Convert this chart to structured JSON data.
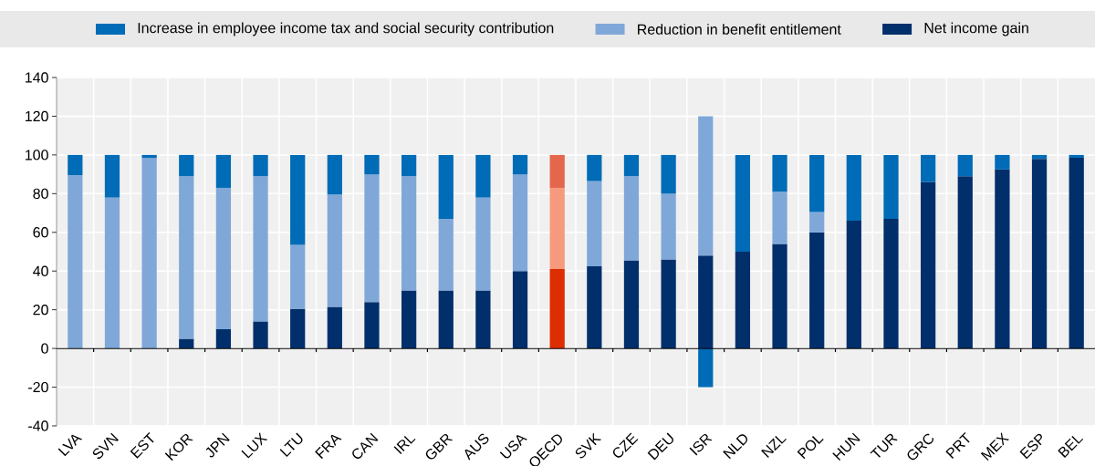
{
  "chart_data": {
    "type": "bar",
    "stacked": true,
    "categories": [
      "LVA",
      "SVN",
      "EST",
      "KOR",
      "JPN",
      "LUX",
      "LTU",
      "FRA",
      "CAN",
      "IRL",
      "GBR",
      "AUS",
      "USA",
      "OECD",
      "SVK",
      "CZE",
      "DEU",
      "ISR",
      "NLD",
      "NZL",
      "POL",
      "HUN",
      "TUR",
      "GRC",
      "PRT",
      "MEX",
      "ESP",
      "BEL"
    ],
    "series": [
      {
        "name": "Net income gain",
        "color": "#002f6c",
        "colors": [
          "#002f6c",
          "#002f6c",
          "#002f6c",
          "#002f6c",
          "#002f6c",
          "#002f6c",
          "#002f6c",
          "#002f6c",
          "#002f6c",
          "#002f6c",
          "#002f6c",
          "#002f6c",
          "#002f6c",
          "#dc2e00",
          "#002f6c",
          "#002f6c",
          "#002f6c",
          "#002f6c",
          "#002f6c",
          "#002f6c",
          "#002f6c",
          "#002f6c",
          "#002f6c",
          "#002f6c",
          "#002f6c",
          "#002f6c",
          "#002f6c",
          "#002f6c"
        ],
        "values": [
          0,
          0,
          0,
          5,
          10,
          14,
          20.5,
          21.5,
          24,
          30,
          30,
          30,
          40,
          41,
          42.5,
          45.5,
          46,
          48,
          50,
          54,
          60,
          66,
          67,
          86,
          89,
          92.5,
          98,
          98.5
        ]
      },
      {
        "name": "Reduction in benefit entitlement",
        "color": "#7fa8d9",
        "colors": [
          "#7fa8d9",
          "#7fa8d9",
          "#7fa8d9",
          "#7fa8d9",
          "#7fa8d9",
          "#7fa8d9",
          "#7fa8d9",
          "#7fa8d9",
          "#7fa8d9",
          "#7fa8d9",
          "#7fa8d9",
          "#7fa8d9",
          "#7fa8d9",
          "#f59a7c",
          "#7fa8d9",
          "#7fa8d9",
          "#7fa8d9",
          "#7fa8d9",
          "#7fa8d9",
          "#7fa8d9",
          "#7fa8d9",
          "#7fa8d9",
          "#7fa8d9",
          "#7fa8d9",
          "#7fa8d9",
          "#7fa8d9",
          "#7fa8d9",
          "#7fa8d9"
        ],
        "values": [
          89.5,
          78,
          98.5,
          84,
          73,
          75,
          33,
          58,
          66,
          59,
          37,
          48,
          50,
          42,
          44,
          43.5,
          34,
          72,
          0,
          27,
          10.5,
          0,
          0,
          0,
          0,
          0,
          0,
          0
        ]
      },
      {
        "name": "Increase in employee income tax and social security contribution",
        "color": "#006bb6",
        "colors": [
          "#006bb6",
          "#006bb6",
          "#006bb6",
          "#006bb6",
          "#006bb6",
          "#006bb6",
          "#006bb6",
          "#006bb6",
          "#006bb6",
          "#006bb6",
          "#006bb6",
          "#006bb6",
          "#006bb6",
          "#e4664d",
          "#006bb6",
          "#006bb6",
          "#006bb6",
          "#006bb6",
          "#006bb6",
          "#006bb6",
          "#006bb6",
          "#006bb6",
          "#006bb6",
          "#006bb6",
          "#006bb6",
          "#006bb6",
          "#006bb6",
          "#006bb6"
        ],
        "values": [
          10.5,
          22,
          1.5,
          11,
          17,
          11,
          46.5,
          20.5,
          10,
          11,
          33,
          22,
          10,
          17,
          13.5,
          11,
          20,
          -20,
          50,
          19,
          29.5,
          34,
          33,
          14,
          11,
          7.5,
          2,
          1.5
        ]
      }
    ],
    "ylim": [
      -40,
      140
    ],
    "yticks": [
      -40,
      -20,
      0,
      20,
      40,
      60,
      80,
      100,
      120,
      140
    ],
    "grid": true,
    "legend": "top"
  }
}
